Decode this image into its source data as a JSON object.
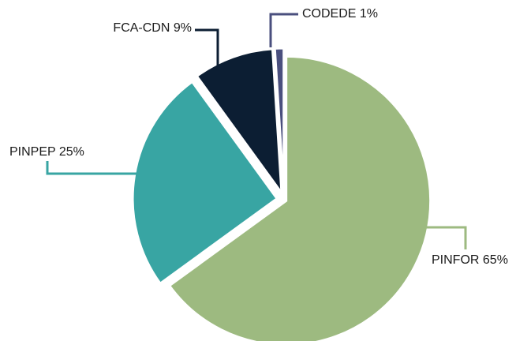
{
  "chart_data": {
    "type": "pie",
    "categories": [
      "PINFOR",
      "PINPEP",
      "FCA-CDN",
      "CODEDE"
    ],
    "values": [
      65,
      25,
      9,
      1
    ],
    "value_labels": [
      "65%",
      "25%",
      "9%",
      "1%"
    ],
    "colors": [
      "#9dba80",
      "#38a5a3",
      "#0c1e33",
      "#4a4f7e"
    ]
  }
}
